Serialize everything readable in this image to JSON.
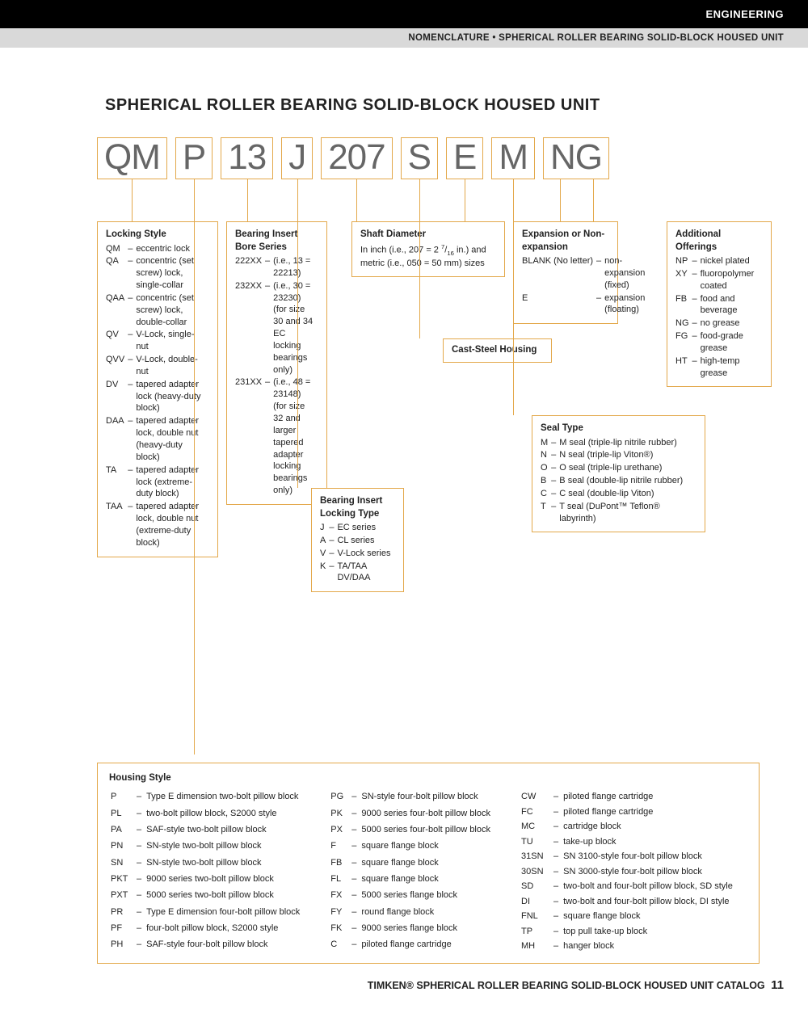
{
  "header": {
    "black": "ENGINEERING",
    "grey": "NOMENCLATURE • SPHERICAL ROLLER BEARING SOLID-BLOCK HOUSED UNIT"
  },
  "title": "SPHERICAL ROLLER BEARING SOLID-BLOCK HOUSED UNIT",
  "code_boxes": [
    "QM",
    "P",
    "13",
    "J",
    "207",
    "S",
    "E",
    "M",
    "NG"
  ],
  "locking_style": {
    "heading": "Locking Style",
    "items": [
      [
        "QM",
        "eccentric lock"
      ],
      [
        "QA",
        "concentric (set screw) lock, single-collar"
      ],
      [
        "QAA",
        "concentric (set screw) lock, double-collar"
      ],
      [
        "QV",
        "V-Lock, single-nut"
      ],
      [
        "QVV",
        "V-Lock, double-nut"
      ],
      [
        "DV",
        "tapered adapter lock (heavy-duty block)"
      ],
      [
        "DAA",
        "tapered adapter lock, double nut (heavy-duty block)"
      ],
      [
        "TA",
        "tapered adapter lock (extreme-duty block)"
      ],
      [
        "TAA",
        "tapered adapter lock, double nut (extreme-duty block)"
      ]
    ]
  },
  "bore_series": {
    "heading": "Bearing Insert Bore Series",
    "items": [
      [
        "222XX",
        "(i.e., 13 = 22213)"
      ],
      [
        "232XX",
        "(i.e., 30 = 23230) (for size 30 and 34 EC locking bearings only)"
      ],
      [
        "231XX",
        "(i.e., 48 = 23148) (for size 32 and larger tapered adapter locking bearings only)"
      ]
    ]
  },
  "locking_type": {
    "heading": "Bearing Insert Locking Type",
    "items": [
      [
        "J",
        "EC series"
      ],
      [
        "A",
        "CL series"
      ],
      [
        "V",
        "V-Lock series"
      ],
      [
        "K",
        "TA/TAA DV/DAA"
      ]
    ]
  },
  "shaft_diameter": {
    "heading": "Shaft Diameter",
    "text": "In inch (i.e., 207 = 2 7/16 in.) and metric (i.e., 050 = 50 mm) sizes"
  },
  "cast_steel": {
    "heading": "Cast-Steel Housing"
  },
  "expansion": {
    "heading": "Expansion or Non-expansion",
    "items": [
      [
        "BLANK (No letter)",
        "non-expansion (fixed)"
      ],
      [
        "E",
        "expansion (floating)"
      ]
    ]
  },
  "seal_type": {
    "heading": "Seal Type",
    "items": [
      [
        "M",
        "M seal (triple-lip nitrile rubber)"
      ],
      [
        "N",
        "N seal (triple-lip Viton®)"
      ],
      [
        "O",
        "O seal (triple-lip urethane)"
      ],
      [
        "B",
        "B seal (double-lip nitrile rubber)"
      ],
      [
        "C",
        "C seal (double-lip Viton)"
      ],
      [
        "T",
        "T seal (DuPont™ Teflon® labyrinth)"
      ]
    ]
  },
  "additional": {
    "heading": "Additional Offerings",
    "items": [
      [
        "NP",
        "nickel plated"
      ],
      [
        "XY",
        "fluoropolymer coated"
      ],
      [
        "FB",
        "food and beverage"
      ],
      [
        "NG",
        "no grease"
      ],
      [
        "FG",
        "food-grade grease"
      ],
      [
        "HT",
        "high-temp grease"
      ]
    ]
  },
  "housing": {
    "heading": "Housing Style",
    "col1": [
      [
        "P",
        "Type E dimension two-bolt pillow block"
      ],
      [
        "PL",
        "two-bolt pillow block, S2000 style"
      ],
      [
        "PA",
        "SAF-style two-bolt pillow block"
      ],
      [
        "PN",
        "SN-style two-bolt pillow block"
      ],
      [
        "SN",
        "SN-style two-bolt pillow block"
      ],
      [
        "PKT",
        "9000 series two-bolt pillow block"
      ],
      [
        "PXT",
        "5000 series two-bolt pillow block"
      ],
      [
        "PR",
        "Type E dimension four-bolt pillow block"
      ],
      [
        "PF",
        "four-bolt pillow block, S2000 style"
      ],
      [
        "PH",
        "SAF-style four-bolt pillow block"
      ]
    ],
    "col2": [
      [
        "PG",
        "SN-style four-bolt pillow block"
      ],
      [
        "PK",
        "9000 series four-bolt pillow block"
      ],
      [
        "PX",
        "5000 series four-bolt pillow block"
      ],
      [
        "F",
        "square flange block"
      ],
      [
        "FB",
        "square flange block"
      ],
      [
        "FL",
        "square flange block"
      ],
      [
        "FX",
        "5000 series flange block"
      ],
      [
        "FY",
        "round flange block"
      ],
      [
        "FK",
        "9000 series flange block"
      ],
      [
        "C",
        "piloted flange cartridge"
      ]
    ],
    "col3": [
      [
        "CW",
        "piloted flange cartridge"
      ],
      [
        "FC",
        "piloted flange cartridge"
      ],
      [
        "MC",
        "cartridge block"
      ],
      [
        "TU",
        "take-up block"
      ],
      [
        "31SN",
        "SN 3100-style four-bolt pillow block"
      ],
      [
        "30SN",
        "SN 3000-style four-bolt pillow block"
      ],
      [
        "SD",
        "two-bolt and four-bolt pillow block, SD style"
      ],
      [
        "DI",
        "two-bolt and four-bolt pillow block, DI style"
      ],
      [
        "FNL",
        "square flange block"
      ],
      [
        "TP",
        "top pull take-up block"
      ],
      [
        "MH",
        "hanger block"
      ]
    ]
  },
  "footer": {
    "text": "TIMKEN® SPHERICAL ROLLER BEARING SOLID-BLOCK HOUSED UNIT CATALOG",
    "page": "11"
  },
  "colors": {
    "accent": "#e3a84a",
    "code_text": "#666666"
  }
}
